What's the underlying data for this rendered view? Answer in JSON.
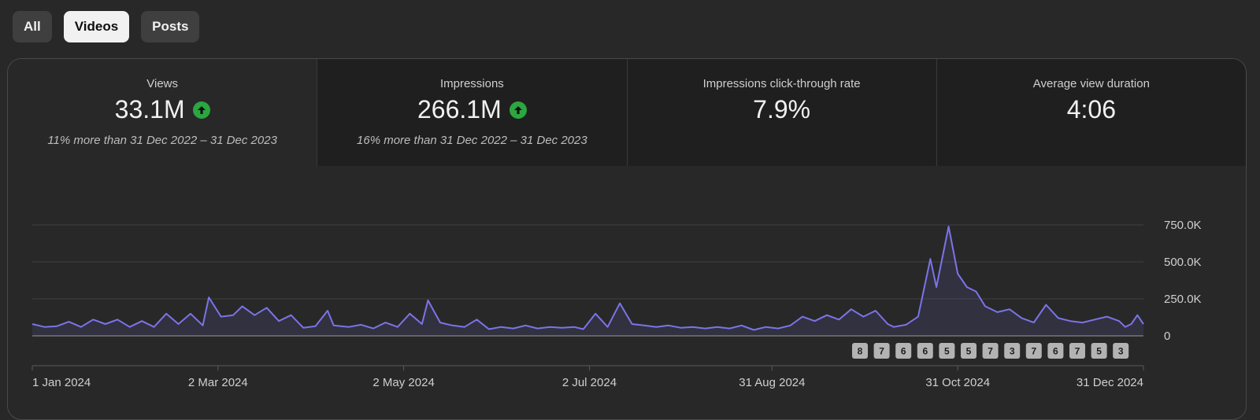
{
  "filters": [
    {
      "label": "All",
      "selected": false
    },
    {
      "label": "Videos",
      "selected": true
    },
    {
      "label": "Posts",
      "selected": false
    }
  ],
  "metrics": [
    {
      "label": "Views",
      "value": "33.1M",
      "trend": "up",
      "sub": "11% more than 31 Dec 2022 – 31 Dec 2023"
    },
    {
      "label": "Impressions",
      "value": "266.1M",
      "trend": "up",
      "sub": "16% more than 31 Dec 2022 – 31 Dec 2023"
    },
    {
      "label": "Impressions click-through rate",
      "value": "7.9%",
      "trend": "",
      "sub": ""
    },
    {
      "label": "Average view duration",
      "value": "4:06",
      "trend": "",
      "sub": ""
    }
  ],
  "colors": {
    "line": "#7b74e8",
    "accent_up": "#2ba640"
  },
  "chart_data": {
    "type": "area",
    "ylim": [
      0,
      750000
    ],
    "y_ticks": [
      {
        "value": 0,
        "label": "0"
      },
      {
        "value": 250000,
        "label": "250.0K"
      },
      {
        "value": 500000,
        "label": "500.0K"
      },
      {
        "value": 750000,
        "label": "750.0K"
      }
    ],
    "x_range": [
      "2024-01-01",
      "2024-12-31"
    ],
    "x_ticks": [
      {
        "date": "2024-01-01",
        "label": "1 Jan 2024"
      },
      {
        "date": "2024-03-02",
        "label": "2 Mar 2024"
      },
      {
        "date": "2024-05-02",
        "label": "2 May 2024"
      },
      {
        "date": "2024-07-02",
        "label": "2 Jul 2024"
      },
      {
        "date": "2024-08-31",
        "label": "31 Aug 2024"
      },
      {
        "date": "2024-10-31",
        "label": "31 Oct 2024"
      },
      {
        "date": "2024-12-31",
        "label": "31 Dec 2024"
      }
    ],
    "series": [
      {
        "points": [
          [
            "2024-01-01",
            80000
          ],
          [
            "2024-01-05",
            60000
          ],
          [
            "2024-01-09",
            65000
          ],
          [
            "2024-01-13",
            95000
          ],
          [
            "2024-01-17",
            60000
          ],
          [
            "2024-01-21",
            110000
          ],
          [
            "2024-01-25",
            80000
          ],
          [
            "2024-01-29",
            110000
          ],
          [
            "2024-02-02",
            60000
          ],
          [
            "2024-02-06",
            100000
          ],
          [
            "2024-02-10",
            60000
          ],
          [
            "2024-02-14",
            150000
          ],
          [
            "2024-02-18",
            80000
          ],
          [
            "2024-02-22",
            150000
          ],
          [
            "2024-02-26",
            70000
          ],
          [
            "2024-02-28",
            260000
          ],
          [
            "2024-03-03",
            130000
          ],
          [
            "2024-03-07",
            140000
          ],
          [
            "2024-03-10",
            200000
          ],
          [
            "2024-03-14",
            140000
          ],
          [
            "2024-03-18",
            190000
          ],
          [
            "2024-03-22",
            100000
          ],
          [
            "2024-03-26",
            140000
          ],
          [
            "2024-03-30",
            55000
          ],
          [
            "2024-04-03",
            65000
          ],
          [
            "2024-04-07",
            170000
          ],
          [
            "2024-04-09",
            70000
          ],
          [
            "2024-04-14",
            60000
          ],
          [
            "2024-04-18",
            75000
          ],
          [
            "2024-04-22",
            50000
          ],
          [
            "2024-04-26",
            90000
          ],
          [
            "2024-04-30",
            60000
          ],
          [
            "2024-05-04",
            150000
          ],
          [
            "2024-05-08",
            80000
          ],
          [
            "2024-05-10",
            240000
          ],
          [
            "2024-05-14",
            90000
          ],
          [
            "2024-05-18",
            70000
          ],
          [
            "2024-05-22",
            60000
          ],
          [
            "2024-05-26",
            110000
          ],
          [
            "2024-05-30",
            45000
          ],
          [
            "2024-06-03",
            60000
          ],
          [
            "2024-06-07",
            50000
          ],
          [
            "2024-06-11",
            70000
          ],
          [
            "2024-06-15",
            50000
          ],
          [
            "2024-06-19",
            60000
          ],
          [
            "2024-06-23",
            55000
          ],
          [
            "2024-06-27",
            60000
          ],
          [
            "2024-06-30",
            45000
          ],
          [
            "2024-07-04",
            150000
          ],
          [
            "2024-07-08",
            60000
          ],
          [
            "2024-07-12",
            220000
          ],
          [
            "2024-07-16",
            80000
          ],
          [
            "2024-07-20",
            70000
          ],
          [
            "2024-07-24",
            60000
          ],
          [
            "2024-07-28",
            70000
          ],
          [
            "2024-08-01",
            55000
          ],
          [
            "2024-08-05",
            60000
          ],
          [
            "2024-08-09",
            50000
          ],
          [
            "2024-08-13",
            60000
          ],
          [
            "2024-08-17",
            50000
          ],
          [
            "2024-08-21",
            70000
          ],
          [
            "2024-08-25",
            40000
          ],
          [
            "2024-08-29",
            60000
          ],
          [
            "2024-09-02",
            50000
          ],
          [
            "2024-09-06",
            70000
          ],
          [
            "2024-09-10",
            130000
          ],
          [
            "2024-09-14",
            100000
          ],
          [
            "2024-09-18",
            140000
          ],
          [
            "2024-09-22",
            110000
          ],
          [
            "2024-09-26",
            180000
          ],
          [
            "2024-09-30",
            130000
          ],
          [
            "2024-10-04",
            170000
          ],
          [
            "2024-10-08",
            80000
          ],
          [
            "2024-10-10",
            60000
          ],
          [
            "2024-10-14",
            75000
          ],
          [
            "2024-10-18",
            130000
          ],
          [
            "2024-10-22",
            520000
          ],
          [
            "2024-10-24",
            330000
          ],
          [
            "2024-10-28",
            740000
          ],
          [
            "2024-10-31",
            420000
          ],
          [
            "2024-11-03",
            330000
          ],
          [
            "2024-11-06",
            300000
          ],
          [
            "2024-11-09",
            200000
          ],
          [
            "2024-11-13",
            160000
          ],
          [
            "2024-11-17",
            180000
          ],
          [
            "2024-11-21",
            120000
          ],
          [
            "2024-11-25",
            90000
          ],
          [
            "2024-11-29",
            210000
          ],
          [
            "2024-12-03",
            120000
          ],
          [
            "2024-12-07",
            100000
          ],
          [
            "2024-12-11",
            90000
          ],
          [
            "2024-12-15",
            110000
          ],
          [
            "2024-12-19",
            130000
          ],
          [
            "2024-12-23",
            100000
          ],
          [
            "2024-12-25",
            60000
          ],
          [
            "2024-12-27",
            80000
          ],
          [
            "2024-12-29",
            140000
          ],
          [
            "2024-12-31",
            80000
          ]
        ]
      }
    ],
    "markers": [
      "8",
      "7",
      "6",
      "6",
      "5",
      "5",
      "7",
      "3",
      "7",
      "6",
      "7",
      "5",
      "3"
    ]
  }
}
